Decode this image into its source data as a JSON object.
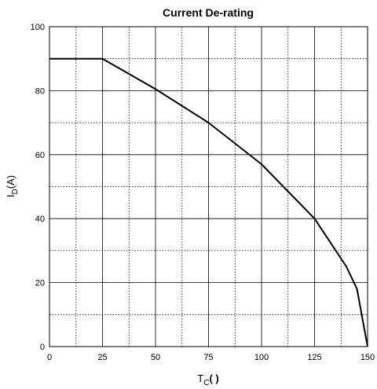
{
  "chart_data": {
    "type": "line",
    "title": "Current De-rating",
    "xlabel": {
      "main": "T",
      "sub": "C",
      "tail": "(   )"
    },
    "ylabel": {
      "main": "I",
      "sub": "D",
      "tail": "(A)"
    },
    "xlim": [
      0,
      150
    ],
    "ylim": [
      0,
      100
    ],
    "xticks": [
      0,
      25,
      50,
      75,
      100,
      125,
      150
    ],
    "yticks": [
      0,
      20,
      40,
      60,
      80,
      100
    ],
    "xtick_labels": [
      "0",
      "25",
      "50",
      "75",
      "100",
      "125",
      "150"
    ],
    "ytick_labels": [
      "0",
      "20",
      "40",
      "60",
      "80",
      "100"
    ],
    "grid": true,
    "series": [
      {
        "x": [
          0,
          25,
          50,
          75,
          100,
          125,
          135,
          140,
          145,
          150
        ],
        "y": [
          90,
          90,
          80.5,
          70,
          57,
          40,
          30,
          25,
          18,
          0
        ]
      }
    ]
  }
}
